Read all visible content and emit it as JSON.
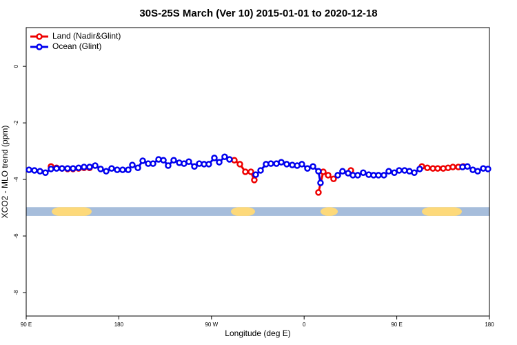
{
  "chart_data": {
    "type": "line",
    "title": "30S-25S March (Ver 10)   2015-01-01 to 2020-12-18",
    "x_label": "Longitude (deg E)",
    "y_label": "XCO2 - MLO trend (ppm)",
    "xlim": [
      90,
      540
    ],
    "ylim": [
      -8.83,
      1.37
    ],
    "xticks": [
      {
        "value": 90,
        "label": "90 E"
      },
      180,
      {
        "value": 270,
        "label": "90 W"
      },
      {
        "value": 360,
        "label": "0"
      },
      {
        "value": 450,
        "label": "90 E"
      },
      {
        "value": 540,
        "label": "180"
      }
    ],
    "yticks": [
      0,
      -2,
      -4,
      -6,
      -8
    ],
    "legend": "top-left",
    "series": [
      {
        "name": "Land (Nadir&Glint)",
        "color": "#ee0000",
        "x": [
          114.1,
          119.5,
          124.8,
          130.2,
          135.5,
          140.9,
          146.2,
          151.6,
          220,
          292.2,
          297.6,
          302.9,
          308.3,
          311.6,
          340,
          373.9,
          378.6,
          383.3,
          388.6,
          397,
          405.4,
          440,
          474.4,
          479.7,
          485.1,
          489.8,
          495.1,
          499.8,
          504.5,
          509.8,
          514.5
        ],
        "values": [
          -3.54,
          -3.59,
          -3.61,
          -3.63,
          -3.63,
          -3.61,
          -3.59,
          -3.59,
          null,
          -3.32,
          -3.46,
          -3.73,
          -3.73,
          -4.02,
          null,
          -4.46,
          -3.73,
          -3.85,
          -3.98,
          null,
          -3.68,
          null,
          -3.54,
          -3.59,
          -3.61,
          -3.61,
          -3.61,
          -3.59,
          -3.56,
          -3.56,
          -3.54
        ]
      },
      {
        "name": "Ocean (Glint)",
        "color": "#0000ee",
        "x": [
          92.7,
          98.0,
          103.4,
          108.7,
          114.1,
          119.5,
          124.8,
          130.2,
          135.5,
          140.9,
          146.2,
          151.6,
          157.0,
          162.3,
          167.7,
          173.0,
          178.4,
          183.7,
          189.1,
          193.1,
          198.5,
          203.2,
          208.5,
          213.2,
          218.6,
          223.3,
          227.9,
          233.3,
          238.7,
          243.3,
          248.0,
          253.4,
          258.1,
          262.8,
          267.4,
          272.8,
          277.5,
          282.8,
          287.5,
          300,
          313.0,
          317.7,
          323.0,
          327.7,
          333.1,
          337.8,
          343.1,
          348.5,
          353.2,
          357.8,
          363.2,
          368.6,
          373.9,
          375.9,
          384,
          392.7,
          397.3,
          402.7,
          407.4,
          412.1,
          417.4,
          422.8,
          427.5,
          432.2,
          437.5,
          442.2,
          447.6,
          452.3,
          457.6,
          462.3,
          467.0,
          472.3,
          493,
          513.9,
          518.6,
          523.9,
          528.6,
          534.0,
          538.6
        ],
        "values": [
          -3.66,
          -3.68,
          -3.71,
          -3.76,
          -3.63,
          -3.61,
          -3.61,
          -3.61,
          -3.61,
          -3.59,
          -3.56,
          -3.56,
          -3.51,
          -3.63,
          -3.71,
          -3.61,
          -3.66,
          -3.66,
          -3.66,
          -3.49,
          -3.59,
          -3.34,
          -3.44,
          -3.44,
          -3.29,
          -3.32,
          -3.51,
          -3.32,
          -3.41,
          -3.44,
          -3.37,
          -3.54,
          -3.44,
          -3.46,
          -3.46,
          -3.24,
          -3.39,
          -3.2,
          -3.29,
          null,
          -3.83,
          -3.68,
          -3.46,
          -3.44,
          -3.44,
          -3.39,
          -3.46,
          -3.49,
          -3.51,
          -3.46,
          -3.61,
          -3.54,
          -3.71,
          -4.12,
          null,
          -3.85,
          -3.71,
          -3.78,
          -3.85,
          -3.85,
          -3.76,
          -3.83,
          -3.85,
          -3.85,
          -3.85,
          -3.71,
          -3.76,
          -3.68,
          -3.68,
          -3.71,
          -3.76,
          -3.63,
          null,
          -3.56,
          -3.54,
          -3.66,
          -3.71,
          -3.61,
          -3.63
        ]
      }
    ],
    "surface_band": {
      "ylim": [
        -5.29,
        -4.98
      ],
      "ocean_color": "#a6bddb",
      "land_color": "#fdd97a",
      "land_ranges": [
        [
          114.8,
          153.6
        ],
        [
          288.9,
          312.3
        ],
        [
          375.9,
          392.7
        ],
        [
          474.4,
          513.2
        ]
      ]
    }
  }
}
